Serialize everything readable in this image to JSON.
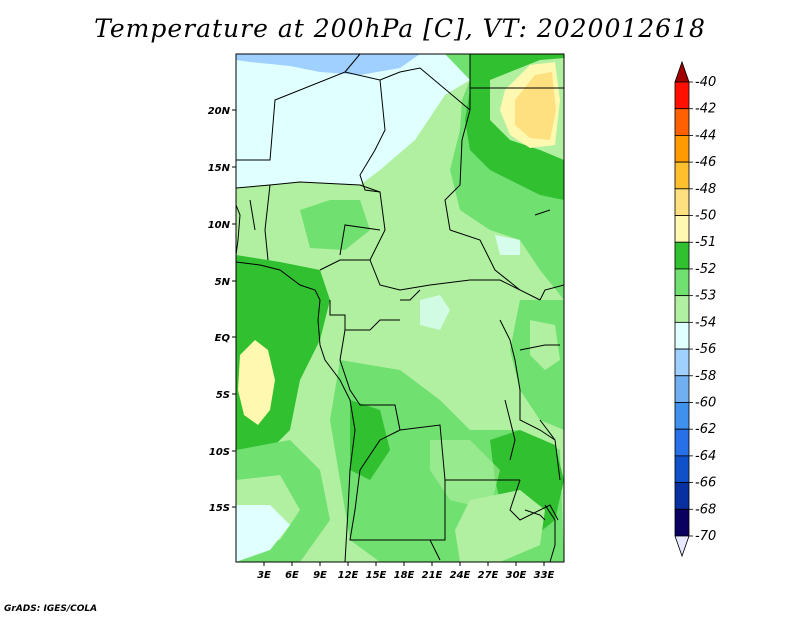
{
  "title": "Temperature at 200hPa [C], VT: 2020012618",
  "credit": "GrADS: IGES/COLA",
  "lat_labels": [
    "20N",
    "15N",
    "10N",
    "5N",
    "EQ",
    "5S",
    "10S",
    "15S"
  ],
  "lon_labels": [
    "3E",
    "6E",
    "9E",
    "12E",
    "15E",
    "18E",
    "21E",
    "24E",
    "27E",
    "30E",
    "33E"
  ],
  "colorbar": {
    "labels": [
      "-40",
      "-42",
      "-44",
      "-46",
      "-48",
      "-50",
      "-51",
      "-52",
      "-53",
      "-54",
      "-56",
      "-58",
      "-60",
      "-62",
      "-64",
      "-66",
      "-68",
      "-70"
    ],
    "colors": [
      "#a00000",
      "#ff1000",
      "#ff6000",
      "#ff9a00",
      "#ffc030",
      "#ffe080",
      "#fff8b0",
      "#30c030",
      "#70e070",
      "#b0f0a0",
      "#e0ffff",
      "#a0d0ff",
      "#70b0f0",
      "#4090ee",
      "#2870e8",
      "#1050c8",
      "#0830a0",
      "#0a0060",
      "#e8e8ff"
    ]
  }
}
